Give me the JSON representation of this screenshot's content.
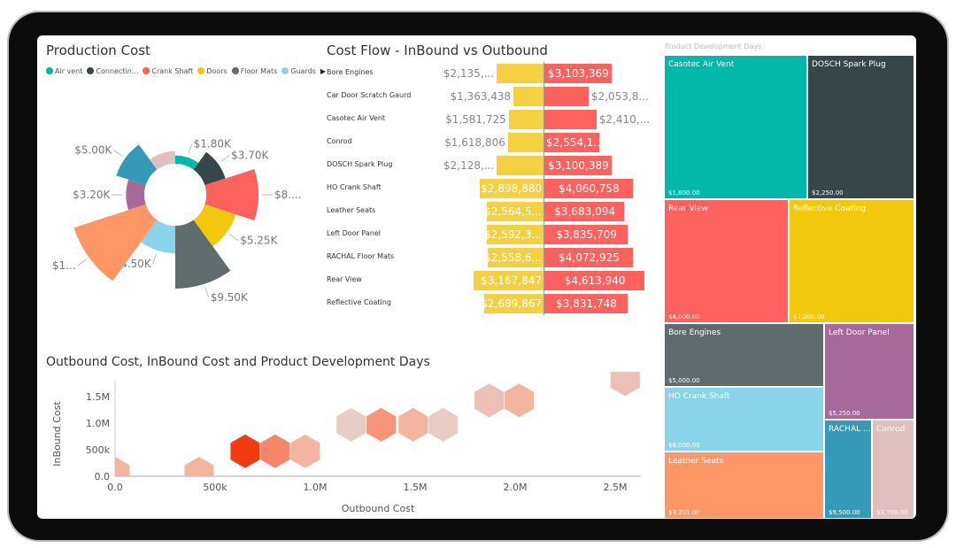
{
  "production_cost": {
    "title": "Production Cost",
    "legend": [
      {
        "label": "Air vent",
        "color": "#01b8aa"
      },
      {
        "label": "Connectin...",
        "color": "#374649"
      },
      {
        "label": "Crank Shaft",
        "color": "#fd625e"
      },
      {
        "label": "Doors",
        "color": "#f2c80f"
      },
      {
        "label": "Floor Mats",
        "color": "#5f6b6d"
      },
      {
        "label": "Guards",
        "color": "#8ad4eb"
      }
    ],
    "legend_more_icon": "triangle-right-icon"
  },
  "cost_flow": {
    "title": "Cost Flow - InBound vs Outbound",
    "inbound_color": "#f5d142",
    "outbound_color": "#fd625e"
  },
  "scatter": {
    "title": "Outbound Cost, InBound Cost and Product Development Days"
  },
  "treemap": {
    "title": "Product Development Days"
  },
  "chart_data": [
    {
      "type": "polar-area",
      "title": "Production Cost",
      "segments": [
        {
          "category": "Air vent",
          "value": 1.8,
          "label": "$1.80K",
          "color": "#01b8aa"
        },
        {
          "category": "Connectin...",
          "value": 3.7,
          "label": "$3.70K",
          "color": "#374649"
        },
        {
          "category": "Crank Shaft",
          "value": 8,
          "label": "$8....",
          "color": "#fd625e"
        },
        {
          "category": "Doors",
          "value": 5.25,
          "label": "$5.25K",
          "color": "#f2c80f"
        },
        {
          "category": "Floor Mats",
          "value": 9.5,
          "label": "$9.50K",
          "color": "#5f6b6d"
        },
        {
          "category": "Guards",
          "value": 4.5,
          "label": "$4.50K",
          "color": "#8ad4eb"
        },
        {
          "value": 11.3,
          "label": "$1...",
          "color": "#fe9666"
        },
        {
          "value": 3.2,
          "label": "$3.20K",
          "color": "#a66999"
        },
        {
          "value": 5.0,
          "label": "$5.00K",
          "color": "#3599b8"
        },
        {
          "value": 2.4,
          "label": "",
          "color": "#dfbfbf"
        }
      ]
    },
    {
      "type": "bar",
      "title": "Cost Flow - InBound vs Outbound",
      "categories": [
        "Bore Engines",
        "Car Door Scratch Gaurd",
        "Casotec Air Vent",
        "Conrod",
        "DOSCH Spark Plug",
        "HO Crank Shaft",
        "Leather Seats",
        "Left Door Panel",
        "RACHAL Floor Mats",
        "Rear View",
        "Reflective Coating"
      ],
      "series": [
        {
          "values": [
            2135000,
            1363438,
            1581725,
            1618806,
            2128000,
            2898880,
            2564500,
            2592300,
            2558600,
            3167847,
            2689867
          ],
          "labels": [
            "$2,135,...",
            "$1,363,438",
            "$1,581,725",
            "$1,618,806",
            "$2,128,...",
            "$2,898,880",
            "$2,564,5...",
            "$2,592,3...",
            "$2,558,6...",
            "$3,167,847",
            "$2,689,867"
          ]
        },
        {
          "values": [
            3103369,
            2053800,
            2410000,
            2554100,
            3100389,
            4060758,
            3683094,
            3835709,
            4072925,
            4613940,
            3831748
          ],
          "labels": [
            "$3,103,369",
            "$2,053,8...",
            "$2,410,...",
            "$2,554,1...",
            "$3,100,389",
            "$4,060,758",
            "$3,683,094",
            "$3,835,709",
            "$4,072,925",
            "$4,613,940",
            "$3,831,748"
          ]
        }
      ]
    },
    {
      "type": "scatter",
      "title": "Outbound Cost, InBound Cost and Product Development Days",
      "xlabel": "Outbound Cost",
      "ylabel": "InBound Cost",
      "xticks": [
        "0.0",
        "500k",
        "1.0M",
        "1.5M",
        "2.0M",
        "2.5M"
      ],
      "yticks": [
        "0.0",
        "500k",
        "1.0M",
        "1.5M"
      ],
      "xlim": [
        0,
        2600000
      ],
      "ylim": [
        0,
        1800000
      ],
      "points": [
        {
          "x": 0,
          "y": 50000,
          "color": "#f2b5a0"
        },
        {
          "x": 420000,
          "y": 50000,
          "color": "#f2b5a0"
        },
        {
          "x": 650000,
          "y": 470000,
          "color": "#f23c10"
        },
        {
          "x": 800000,
          "y": 470000,
          "color": "#f5866a"
        },
        {
          "x": 950000,
          "y": 470000,
          "color": "#f2b5a0"
        },
        {
          "x": 1180000,
          "y": 970000,
          "color": "#e8ccc6"
        },
        {
          "x": 1330000,
          "y": 970000,
          "color": "#f5957a"
        },
        {
          "x": 1490000,
          "y": 970000,
          "color": "#f2b5a0"
        },
        {
          "x": 1640000,
          "y": 970000,
          "color": "#e8ccc6"
        },
        {
          "x": 1870000,
          "y": 1430000,
          "color": "#ecc0b5"
        },
        {
          "x": 2020000,
          "y": 1430000,
          "color": "#f2b5a0"
        },
        {
          "x": 2550000,
          "y": 1830000,
          "color": "#ecc0b5"
        }
      ]
    },
    {
      "type": "treemap",
      "title": "Product Development Days",
      "items": [
        {
          "name": "Casotec Air Vent",
          "label": "$1,800.00",
          "color": "#01b8aa"
        },
        {
          "name": "DOSCH Spark Plug",
          "label": "$2,250.00",
          "color": "#374649"
        },
        {
          "name": "Rear View",
          "label": "$4,000.00",
          "color": "#fd625e"
        },
        {
          "name": "Reflective Coating",
          "label": "$7,200.00",
          "color": "#f2c80f"
        },
        {
          "name": "Bore Engines",
          "label": "$5,000.00",
          "color": "#5f6b6d"
        },
        {
          "name": "Left Door Panel",
          "label": "$5,250.00",
          "color": "#a66999"
        },
        {
          "name": "HO Crank Shaft",
          "label": "$8,000.00",
          "color": "#8ad4eb"
        },
        {
          "name": "Leather Seats",
          "label": "$3,201.00",
          "color": "#fe9666"
        },
        {
          "name": "RACHAL ...",
          "label": "$9,500.00",
          "color": "#3599b8"
        },
        {
          "name": "Conrod",
          "label": "$3,700.00",
          "color": "#dfbfbf"
        }
      ]
    }
  ]
}
